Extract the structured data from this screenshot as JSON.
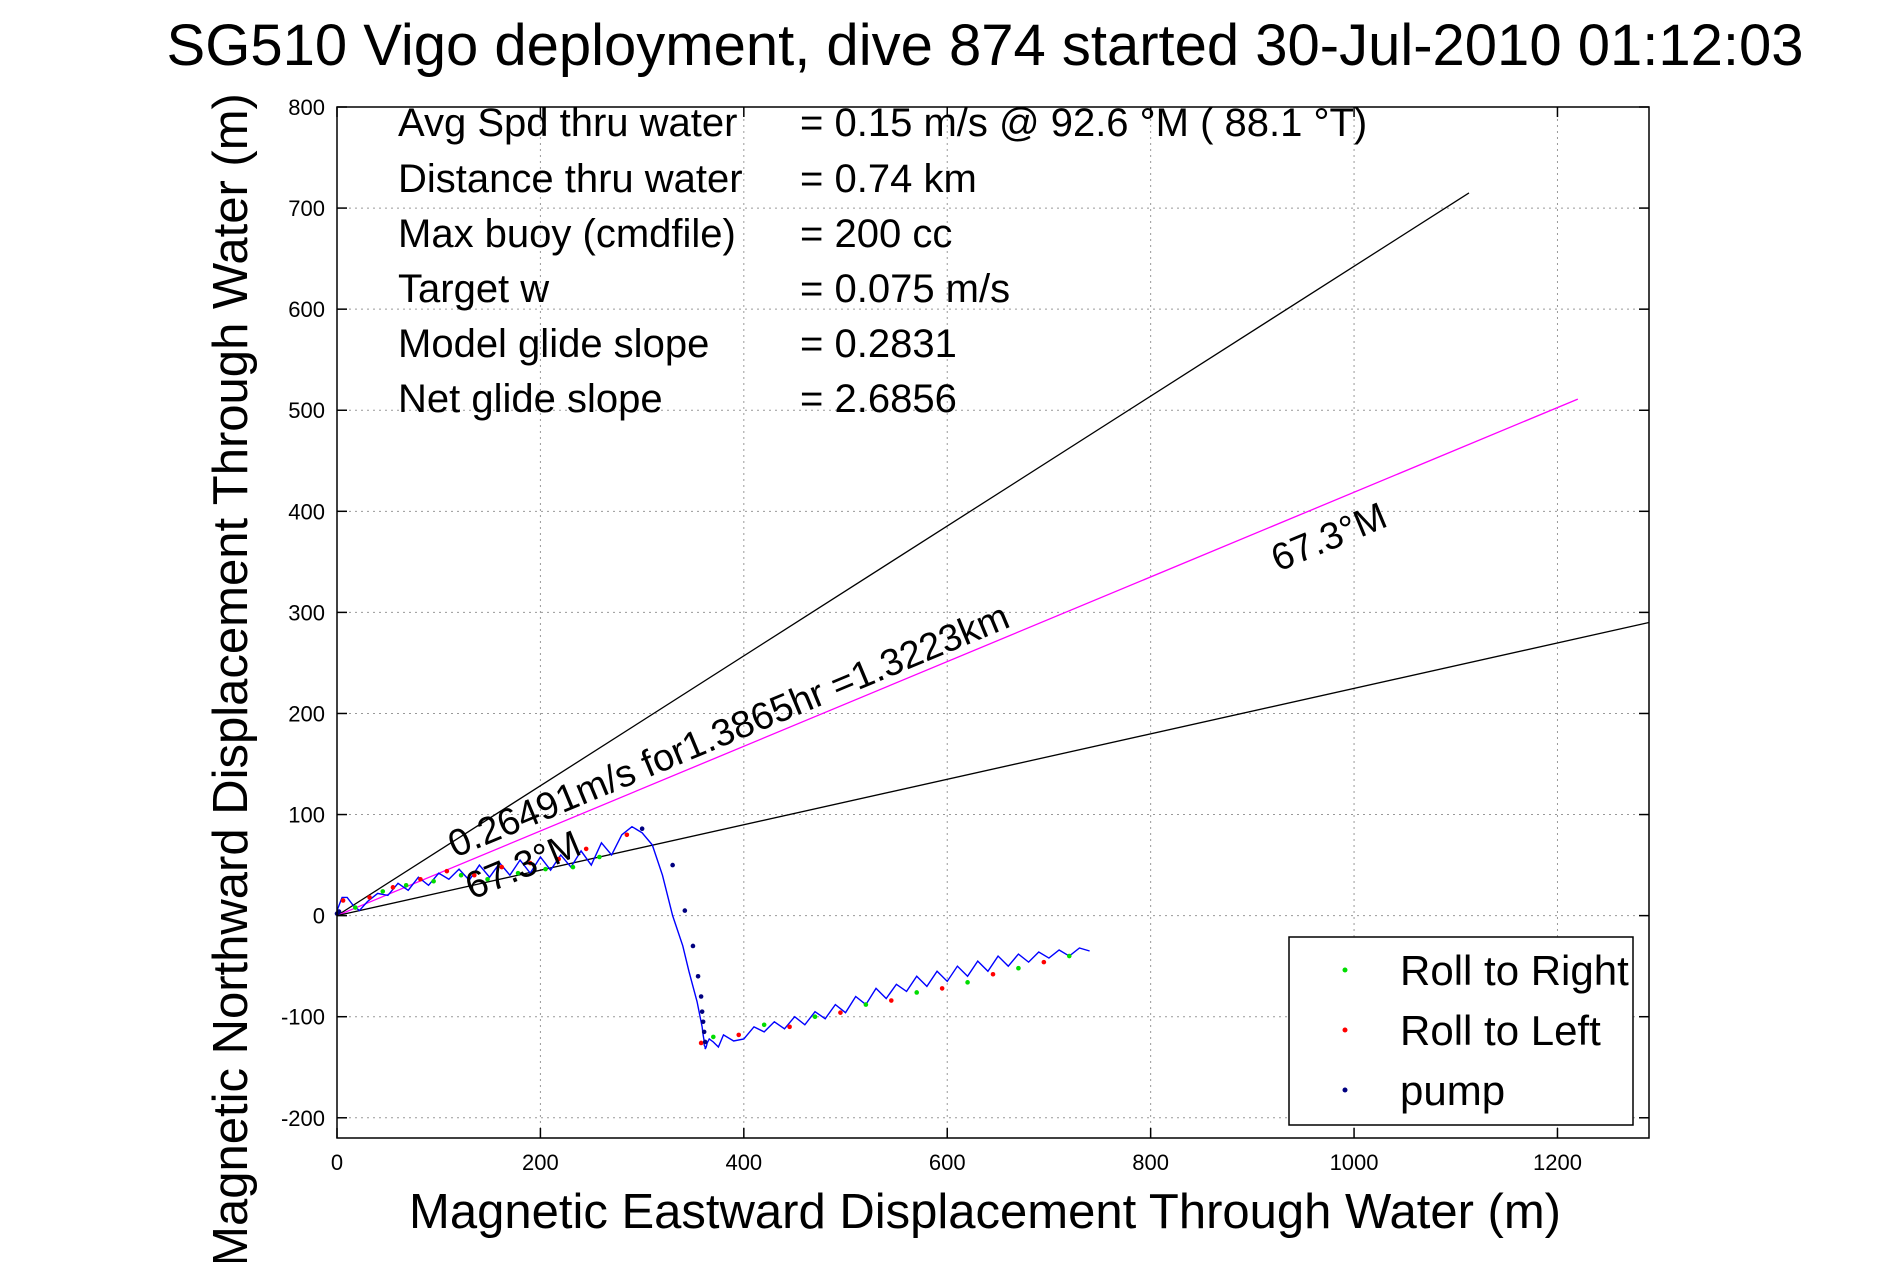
{
  "chart_data": {
    "type": "line",
    "title": "SG510 Vigo deployment, dive 874 started 30-Jul-2010 01:12:03",
    "xlabel": "Magnetic Eastward Displacement Through Water (m)",
    "ylabel": "Magnetic Northward Displacement Through Water (m)",
    "xlim": [
      0,
      1290
    ],
    "ylim": [
      -220,
      800
    ],
    "xticks": [
      0,
      200,
      400,
      600,
      800,
      1000,
      1200
    ],
    "yticks": [
      -200,
      -100,
      0,
      100,
      200,
      300,
      400,
      500,
      600,
      700,
      800
    ],
    "grid": true,
    "legend_position": "bottom-right",
    "info_lines": [
      {
        "label": "Avg Spd thru water",
        "value": "=  0.15 m/s @  92.6 °M ( 88.1 °T)"
      },
      {
        "label": "Distance thru water",
        "value": "=  0.74 km"
      },
      {
        "label": "Max buoy (cmdfile)",
        "value": "= 200 cc"
      },
      {
        "label": "Target w",
        "value": "= 0.075 m/s"
      },
      {
        "label": "Model glide slope",
        "value": "= 0.2831"
      },
      {
        "label": "Net glide slope",
        "value": "= 2.6856"
      }
    ],
    "annotations": {
      "target_line_label": "0.26491m/s for1.3865hr =1.3223km",
      "heading_label_far": "67.3°M",
      "heading_label_near": "67.3°M"
    },
    "reference_lines": [
      {
        "name": "upper bound",
        "color": "#000000",
        "x": [
          0,
          1113
        ],
        "y": [
          0,
          715
        ]
      },
      {
        "name": "target course",
        "color": "#ff00ff",
        "x": [
          0,
          1220
        ],
        "y": [
          0,
          511
        ]
      },
      {
        "name": "lower bound",
        "color": "#000000",
        "x": [
          0,
          1290
        ],
        "y": [
          0,
          290
        ]
      }
    ],
    "series": [
      {
        "name": "track",
        "color": "#0000ff",
        "x": [
          0,
          5,
          10,
          16,
          22,
          30,
          40,
          50,
          60,
          70,
          80,
          90,
          100,
          110,
          120,
          130,
          140,
          150,
          160,
          170,
          180,
          190,
          200,
          210,
          220,
          230,
          240,
          250,
          260,
          270,
          280,
          290,
          300,
          310,
          320,
          330,
          340,
          346,
          350,
          354,
          357,
          359,
          360,
          361,
          361,
          362,
          362,
          363,
          364,
          366,
          370,
          375,
          380,
          390,
          400,
          410,
          420,
          430,
          440,
          450,
          460,
          470,
          480,
          490,
          500,
          510,
          520,
          530,
          540,
          550,
          560,
          570,
          580,
          590,
          600,
          610,
          620,
          630,
          640,
          650,
          660,
          670,
          680,
          690,
          700,
          710,
          720,
          730,
          740
        ],
        "y": [
          5,
          18,
          18,
          10,
          5,
          14,
          22,
          20,
          32,
          25,
          38,
          30,
          42,
          36,
          46,
          35,
          50,
          38,
          52,
          40,
          55,
          42,
          58,
          45,
          60,
          48,
          64,
          50,
          72,
          60,
          80,
          88,
          82,
          70,
          40,
          0,
          -30,
          -55,
          -70,
          -85,
          -100,
          -110,
          -118,
          -124,
          -128,
          -130,
          -132,
          -130,
          -126,
          -122,
          -125,
          -130,
          -118,
          -124,
          -122,
          -110,
          -115,
          -105,
          -112,
          -100,
          -108,
          -95,
          -102,
          -88,
          -96,
          -80,
          -88,
          -72,
          -82,
          -68,
          -75,
          -60,
          -70,
          -55,
          -65,
          -50,
          -60,
          -45,
          -55,
          -40,
          -50,
          -38,
          -46,
          -36,
          -42,
          -34,
          -40,
          -32,
          -35
        ]
      },
      {
        "name": "Roll to Right",
        "color": "#00dd00",
        "x": [
          18,
          45,
          68,
          95,
          122,
          148,
          178,
          205,
          232,
          258,
          370,
          420,
          470,
          520,
          570,
          620,
          670,
          720
        ],
        "y": [
          8,
          24,
          30,
          34,
          40,
          36,
          42,
          46,
          48,
          58,
          -120,
          -108,
          -100,
          -88,
          -76,
          -66,
          -52,
          -40
        ]
      },
      {
        "name": "Roll to Left",
        "color": "#ff0000",
        "x": [
          6,
          32,
          55,
          82,
          108,
          135,
          162,
          190,
          218,
          245,
          285,
          358,
          395,
          445,
          495,
          545,
          595,
          645,
          695
        ],
        "y": [
          15,
          18,
          28,
          36,
          44,
          40,
          48,
          52,
          56,
          66,
          80,
          -126,
          -118,
          -110,
          -96,
          -84,
          -72,
          -58,
          -46
        ]
      },
      {
        "name": "pump",
        "color": "#000080",
        "x": [
          0,
          2,
          300,
          330,
          342,
          350,
          355,
          358,
          359,
          360,
          361,
          362
        ],
        "y": [
          2,
          4,
          86,
          50,
          5,
          -30,
          -60,
          -80,
          -95,
          -105,
          -115,
          -125
        ]
      }
    ],
    "legend": [
      {
        "label": "Roll to Right",
        "color": "#00dd00"
      },
      {
        "label": "Roll to Left",
        "color": "#ff0000"
      },
      {
        "label": "pump",
        "color": "#000080"
      }
    ]
  }
}
